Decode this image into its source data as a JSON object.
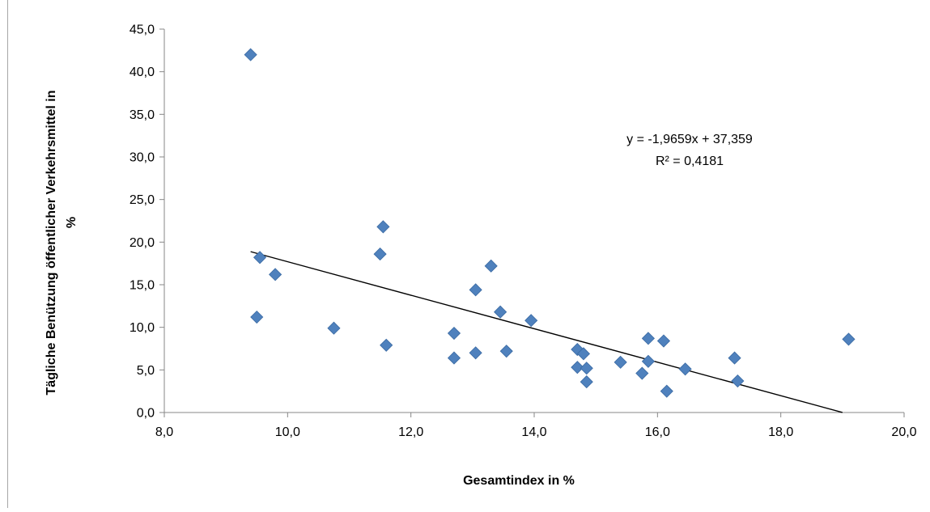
{
  "chart_data": {
    "type": "scatter",
    "xlabel": "Gesamtindex in %",
    "ylabel_lines": [
      "Tägliche  Benützung öffentlicher Verkehrsmittel in",
      "%"
    ],
    "xlim": [
      8.0,
      20.0
    ],
    "ylim": [
      0.0,
      45.0
    ],
    "x_ticks": [
      "8,0",
      "10,0",
      "12,0",
      "14,0",
      "16,0",
      "18,0",
      "20,0"
    ],
    "y_ticks": [
      "0,0",
      "5,0",
      "10,0",
      "15,0",
      "20,0",
      "25,0",
      "30,0",
      "35,0",
      "40,0",
      "45,0"
    ],
    "grid": false,
    "marker_color": "#4f81bd",
    "trendline": {
      "slope": -1.9659,
      "intercept": 37.359,
      "x_range": [
        9.4,
        19.0
      ]
    },
    "annotations": {
      "equation": "y = -1,9659x + 37,359",
      "r_squared": "R² = 0,4181"
    },
    "points": [
      {
        "x": 9.4,
        "y": 42.0
      },
      {
        "x": 9.55,
        "y": 18.2
      },
      {
        "x": 9.5,
        "y": 11.2
      },
      {
        "x": 9.8,
        "y": 16.2
      },
      {
        "x": 10.75,
        "y": 9.9
      },
      {
        "x": 11.55,
        "y": 21.8
      },
      {
        "x": 11.5,
        "y": 18.6
      },
      {
        "x": 11.6,
        "y": 7.9
      },
      {
        "x": 12.7,
        "y": 9.3
      },
      {
        "x": 12.7,
        "y": 6.4
      },
      {
        "x": 13.05,
        "y": 14.4
      },
      {
        "x": 13.05,
        "y": 7.0
      },
      {
        "x": 13.3,
        "y": 17.2
      },
      {
        "x": 13.45,
        "y": 11.8
      },
      {
        "x": 13.55,
        "y": 7.2
      },
      {
        "x": 13.95,
        "y": 10.8
      },
      {
        "x": 14.7,
        "y": 7.4
      },
      {
        "x": 14.7,
        "y": 5.3
      },
      {
        "x": 14.8,
        "y": 6.9
      },
      {
        "x": 14.85,
        "y": 5.2
      },
      {
        "x": 14.85,
        "y": 3.6
      },
      {
        "x": 15.4,
        "y": 5.9
      },
      {
        "x": 15.75,
        "y": 4.6
      },
      {
        "x": 15.85,
        "y": 8.7
      },
      {
        "x": 15.85,
        "y": 6.0
      },
      {
        "x": 16.1,
        "y": 8.4
      },
      {
        "x": 16.15,
        "y": 2.5
      },
      {
        "x": 16.45,
        "y": 5.1
      },
      {
        "x": 17.25,
        "y": 6.4
      },
      {
        "x": 17.3,
        "y": 3.7
      },
      {
        "x": 19.1,
        "y": 8.6
      }
    ]
  }
}
